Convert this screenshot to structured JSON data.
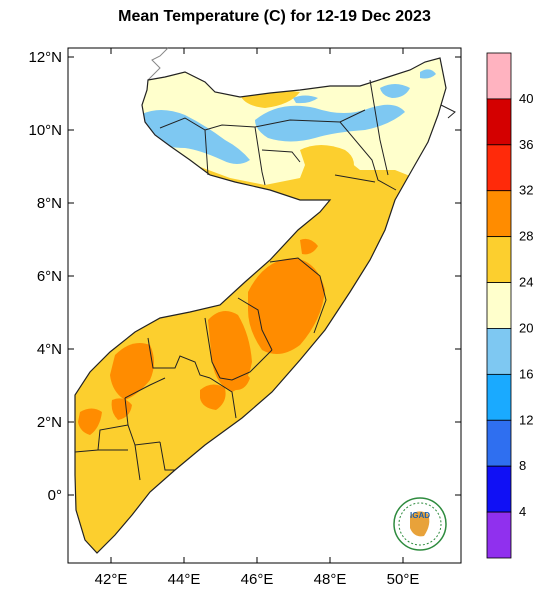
{
  "title": "Mean Temperature (C) for 12-19 Dec 2023",
  "axes": {
    "y_ticks": [
      "12°N",
      "10°N",
      "8°N",
      "6°N",
      "4°N",
      "2°N",
      "0°"
    ],
    "x_ticks": [
      "42°E",
      "44°E",
      "46°E",
      "48°E",
      "50°E"
    ]
  },
  "colorbar": {
    "labels": [
      "40",
      "36",
      "32",
      "28",
      "24",
      "20",
      "16",
      "12",
      "8",
      "4"
    ],
    "colors": [
      "#ffb3c0",
      "#d40000",
      "#ff2a0a",
      "#ff8c00",
      "#fccf2e",
      "#ffffcc",
      "#7ec8f2",
      "#1aaaff",
      "#2f6ff0",
      "#1010f5",
      "#9030ee"
    ]
  },
  "logo": {
    "text": "IGAD"
  }
}
